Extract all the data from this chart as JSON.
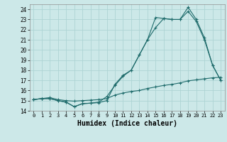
{
  "background_color": "#cce8e8",
  "grid_color": "#aed4d4",
  "line_color": "#1e6b6b",
  "xlabel": "Humidex (Indice chaleur)",
  "xlabel_fontsize": 7,
  "xlim": [
    -0.5,
    23.5
  ],
  "ylim": [
    14,
    24.5
  ],
  "yticks": [
    14,
    15,
    16,
    17,
    18,
    19,
    20,
    21,
    22,
    23,
    24
  ],
  "xticks": [
    0,
    1,
    2,
    3,
    4,
    5,
    6,
    7,
    8,
    9,
    10,
    11,
    12,
    13,
    14,
    15,
    16,
    17,
    18,
    19,
    20,
    21,
    22,
    23
  ],
  "line1_x": [
    0,
    1,
    2,
    3,
    4,
    5,
    6,
    7,
    8,
    9,
    10,
    11,
    12,
    13,
    14,
    15,
    16,
    17,
    18,
    19,
    20,
    21,
    22,
    23
  ],
  "line1_y": [
    15.1,
    15.2,
    15.2,
    15.0,
    14.85,
    14.4,
    14.7,
    14.75,
    14.8,
    15.0,
    16.6,
    17.5,
    18.0,
    19.5,
    21.0,
    22.2,
    23.1,
    23.0,
    23.0,
    24.2,
    23.0,
    21.2,
    18.5,
    17.0
  ],
  "line2_x": [
    0,
    1,
    2,
    3,
    4,
    5,
    6,
    7,
    8,
    9,
    10,
    11,
    12,
    13,
    14,
    15,
    16,
    17,
    18,
    19,
    20,
    21,
    22,
    23
  ],
  "line2_y": [
    15.1,
    15.2,
    15.2,
    15.0,
    14.85,
    14.4,
    14.7,
    14.75,
    14.85,
    15.4,
    16.5,
    17.4,
    18.0,
    19.5,
    21.0,
    23.2,
    23.1,
    23.0,
    23.0,
    23.8,
    22.8,
    21.0,
    18.5,
    17.0
  ],
  "line3_x": [
    0,
    1,
    2,
    3,
    4,
    5,
    6,
    7,
    8,
    9,
    10,
    11,
    12,
    13,
    14,
    15,
    16,
    17,
    18,
    19,
    20,
    21,
    22,
    23
  ],
  "line3_y": [
    15.1,
    15.2,
    15.3,
    15.1,
    15.0,
    14.95,
    15.0,
    15.05,
    15.1,
    15.2,
    15.55,
    15.75,
    15.9,
    16.0,
    16.2,
    16.35,
    16.5,
    16.6,
    16.75,
    16.95,
    17.05,
    17.15,
    17.25,
    17.3
  ]
}
